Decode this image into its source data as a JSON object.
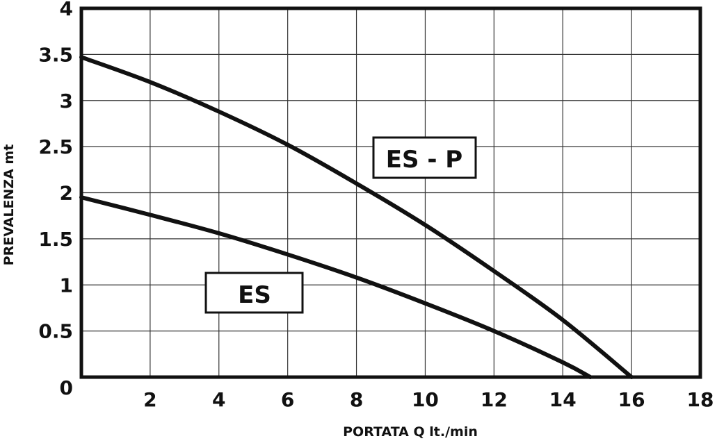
{
  "chart_data": {
    "type": "line",
    "xlabel": "PORTATA Q   lt./min",
    "ylabel": "PREVALENZA  mt",
    "xlim": [
      0,
      18
    ],
    "ylim": [
      0,
      4
    ],
    "x_ticks": [
      "2",
      "4",
      "6",
      "8",
      "10",
      "12",
      "14",
      "16",
      "18"
    ],
    "y_ticks": [
      "0",
      "0.5",
      "1",
      "1.5",
      "2",
      "2.5",
      "3",
      "3.5",
      "4"
    ],
    "grid": true,
    "series": [
      {
        "name": "ES - P",
        "x": [
          0,
          2,
          4,
          6,
          8,
          10,
          12,
          14,
          16
        ],
        "y": [
          3.47,
          3.2,
          2.88,
          2.52,
          2.1,
          1.65,
          1.15,
          0.62,
          0.0
        ]
      },
      {
        "name": "ES",
        "x": [
          0,
          2,
          4,
          6,
          8,
          10,
          12,
          14,
          14.8
        ],
        "y": [
          1.95,
          1.76,
          1.56,
          1.33,
          1.08,
          0.8,
          0.5,
          0.16,
          0.0
        ]
      }
    ]
  },
  "colors": {
    "line": "#111111",
    "grid": "#333333",
    "background": "#ffffff"
  }
}
